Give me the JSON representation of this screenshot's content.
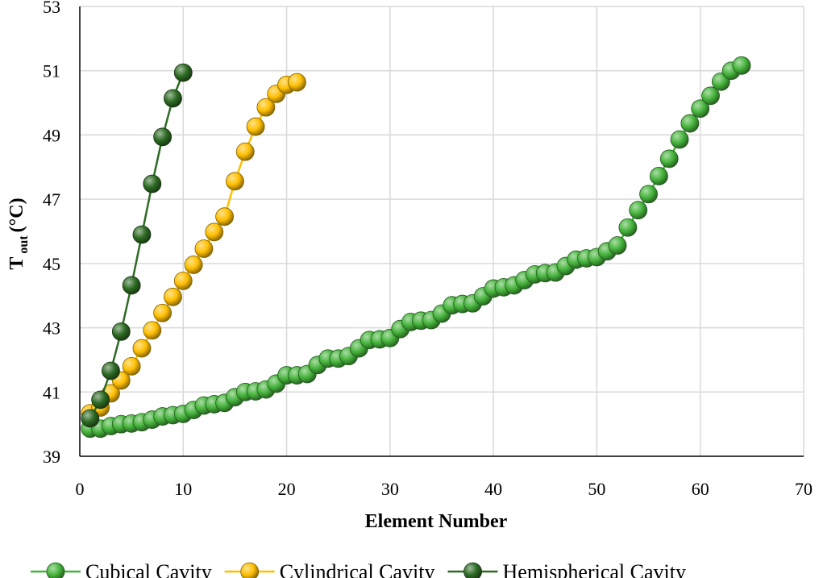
{
  "chart_data": {
    "type": "line",
    "title": "",
    "xlabel": "Element Number",
    "ylabel_main": "T",
    "ylabel_sub": "out",
    "ylabel_unit": "(°C)",
    "xlim": [
      0,
      70
    ],
    "ylim": [
      39,
      53
    ],
    "xticks": [
      0,
      10,
      20,
      30,
      40,
      50,
      60,
      70
    ],
    "yticks": [
      39,
      41,
      43,
      45,
      47,
      49,
      51,
      53
    ],
    "grid": true,
    "legend_position": "bottom",
    "series": [
      {
        "name": "Cubical Cavity",
        "color": "#46b43c",
        "x": [
          1,
          2,
          3,
          4,
          5,
          6,
          7,
          8,
          9,
          10,
          11,
          12,
          13,
          14,
          15,
          16,
          17,
          18,
          19,
          20,
          21,
          22,
          23,
          24,
          25,
          26,
          27,
          28,
          29,
          30,
          31,
          32,
          33,
          34,
          35,
          36,
          37,
          38,
          39,
          40,
          41,
          42,
          43,
          44,
          45,
          46,
          47,
          48,
          49,
          50,
          51,
          52,
          53,
          54,
          55,
          56,
          57,
          58,
          59,
          60,
          61,
          62,
          63,
          64
        ],
        "values": [
          39.86,
          39.86,
          39.94,
          40.0,
          40.02,
          40.06,
          40.14,
          40.24,
          40.28,
          40.32,
          40.44,
          40.58,
          40.62,
          40.66,
          40.84,
          41.0,
          41.02,
          41.08,
          41.26,
          41.52,
          41.52,
          41.56,
          41.84,
          42.04,
          42.04,
          42.12,
          42.36,
          42.62,
          42.64,
          42.68,
          42.96,
          43.18,
          43.22,
          43.24,
          43.44,
          43.7,
          43.74,
          43.76,
          43.98,
          44.22,
          44.26,
          44.32,
          44.48,
          44.66,
          44.7,
          44.72,
          44.92,
          45.12,
          45.16,
          45.2,
          45.38,
          45.56,
          46.12,
          46.66,
          47.16,
          47.72,
          48.26,
          48.86,
          49.36,
          49.82,
          50.22,
          50.66,
          51.0,
          51.16
        ]
      },
      {
        "name": "Cylindrical Cavity",
        "color": "#ffbf00",
        "x": [
          1,
          2,
          3,
          4,
          5,
          6,
          7,
          8,
          9,
          10,
          11,
          12,
          13,
          14,
          15,
          16,
          17,
          18,
          19,
          20,
          21
        ],
        "values": [
          40.34,
          40.52,
          40.96,
          41.36,
          41.8,
          42.36,
          42.92,
          43.46,
          43.96,
          44.46,
          44.96,
          45.46,
          45.98,
          46.46,
          47.56,
          48.48,
          49.26,
          49.86,
          50.28,
          50.56,
          50.64
        ]
      },
      {
        "name": "Hemispherical Cavity",
        "color": "#2d6a23",
        "x": [
          1,
          2,
          3,
          4,
          5,
          6,
          7,
          8,
          9,
          10
        ],
        "values": [
          40.18,
          40.76,
          41.66,
          42.88,
          44.32,
          45.9,
          47.48,
          48.94,
          50.14,
          50.94
        ]
      }
    ]
  }
}
